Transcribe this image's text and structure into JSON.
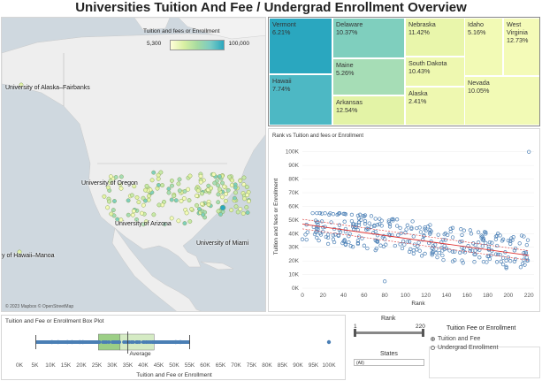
{
  "title": "Universities Tuition And Fee / Undergrad Enrollment Overview",
  "map": {
    "legend_title": "Tuition and fees or Enrollment",
    "legend_min": "5,300",
    "legend_max": "100,000",
    "labels": [
      "University of Alaska–Fairbanks",
      "University of Oregon",
      "University of Arizona",
      "University of Miami",
      "y of Hawaii–Manoa"
    ],
    "attribution": "© 2023 Mapbox © OpenStreetMap"
  },
  "treemap": [
    {
      "state": "Vermont",
      "value": "6.21%",
      "color": "#2aa7bf"
    },
    {
      "state": "Hawaii",
      "value": "7.74%",
      "color": "#4db8c4"
    },
    {
      "state": "Delaware",
      "value": "10.37%",
      "color": "#7fcfbe"
    },
    {
      "state": "Maine",
      "value": "5.26%",
      "color": "#a6ddb6"
    },
    {
      "state": "Arkansas",
      "value": "12.54%",
      "color": "#e3f3a6"
    },
    {
      "state": "Nebraska",
      "value": "11.42%",
      "color": "#e9f6ab"
    },
    {
      "state": "South Dakota",
      "value": "10.43%",
      "color": "#eef8b0"
    },
    {
      "state": "Alaska",
      "value": "2.41%",
      "color": "#eef8b0"
    },
    {
      "state": "Idaho",
      "value": "5.16%",
      "color": "#f2fab5"
    },
    {
      "state": "West Virginia",
      "value": "12.73%",
      "color": "#f4fbb8"
    },
    {
      "state": "Nevada",
      "value": "10.05%",
      "color": "#f2fab5"
    }
  ],
  "chart_data": [
    {
      "type": "scatter",
      "title": "Rank vs Tuition and fees or Enrollment",
      "xlabel": "Rank",
      "ylabel": "Tuition and fees or Enrollment",
      "xlim": [
        0,
        225
      ],
      "ylim": [
        0,
        105000
      ],
      "x_ticks": [
        0,
        20,
        40,
        60,
        80,
        100,
        120,
        140,
        160,
        180,
        200,
        220
      ],
      "y_ticks": [
        "0K",
        "10K",
        "20K",
        "30K",
        "40K",
        "50K",
        "60K",
        "70K",
        "80K",
        "90K",
        "100K"
      ],
      "trend": {
        "start": [
          0,
          47000
        ],
        "end": [
          220,
          24000
        ]
      },
      "series_color": "#4a7fb5"
    },
    {
      "type": "box",
      "title": "Tuition and Fee or Enrollment Box Plot",
      "xlabel": "Tuition and Fee or Enrollment",
      "x_ticks": [
        "0K",
        "5K",
        "10K",
        "15K",
        "20K",
        "25K",
        "30K",
        "35K",
        "40K",
        "45K",
        "50K",
        "55K",
        "60K",
        "65K",
        "70K",
        "75K",
        "80K",
        "85K",
        "90K",
        "95K",
        "100K"
      ],
      "whisker_low": 5300,
      "q1": 25500,
      "median": 32500,
      "q3": 43500,
      "whisker_high": 55000,
      "average": 35000,
      "average_label": "Average",
      "outliers": [
        10500,
        12500,
        15500,
        17000,
        19500,
        20500,
        50500,
        52000,
        100000
      ]
    }
  ],
  "filters": {
    "rank_label": "Rank",
    "rank_min": "1",
    "rank_max": "220",
    "states_label": "States",
    "states_value": "(All)",
    "measure_title": "Tuition Fee or Enrollment",
    "options": [
      "Tuition and Fee",
      "Undergrad Enrollment"
    ],
    "selected": "Tuition and Fee"
  }
}
